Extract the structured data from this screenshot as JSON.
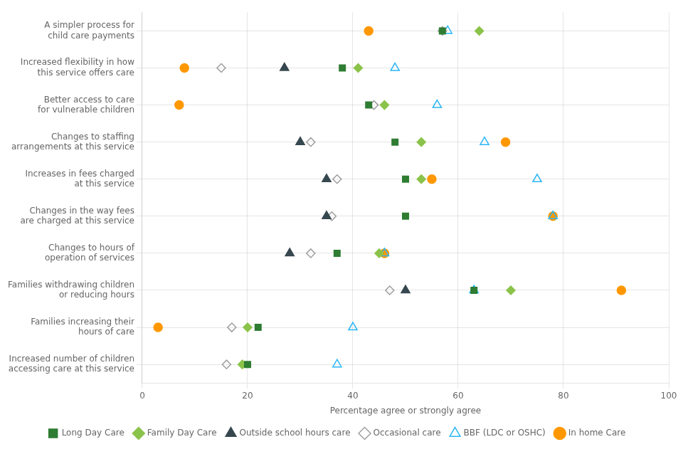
{
  "chart_data": {
    "type": "dot",
    "categories": [
      "A simpler process for\nchild care payments",
      "Increased flexibility in how\nthis service offers care",
      "Better access to care\nfor vulnerable children",
      "Changes to staffing\narrangements at this service",
      "Increases in fees charged\nat this service",
      "Changes in the way fees\nare charged at this service",
      "Changes to hours of\noperation of services",
      "Families withdrawing children\nor reducing hours",
      "Families increasing their\nhours of care",
      "Increased number of children\naccessing care at this service"
    ],
    "series": [
      {
        "name": "Long Day Care",
        "color": "#2e7d32",
        "marker": "square",
        "values": [
          57,
          38,
          43,
          48,
          50,
          50,
          37,
          63,
          22,
          20
        ]
      },
      {
        "name": "Family Day Care",
        "color": "#8bc34a",
        "marker": "diamond",
        "values": [
          64,
          41,
          46,
          53,
          53,
          null,
          45,
          70,
          20,
          19
        ]
      },
      {
        "name": "Outside school hours care",
        "color": "#37474f",
        "marker": "triangle",
        "values": [
          null,
          27,
          null,
          30,
          35,
          35,
          28,
          50,
          null,
          null
        ]
      },
      {
        "name": "Occasional care",
        "color": "#9e9e9e",
        "marker": "diamond-open",
        "values": [
          57,
          15,
          44,
          32,
          37,
          36,
          32,
          47,
          17,
          16
        ]
      },
      {
        "name": "BBF (LDC or OSHC)",
        "color": "#29b6f6",
        "marker": "triangle-open",
        "values": [
          58,
          48,
          56,
          65,
          75,
          78,
          46,
          63,
          40,
          37
        ]
      },
      {
        "name": "In home Care",
        "color": "#ff9800",
        "marker": "circle",
        "values": [
          43,
          8,
          7,
          69,
          55,
          78,
          46,
          91,
          3,
          null
        ]
      }
    ],
    "xlabel": "Percentage agree or strongly agree",
    "xlim": [
      0,
      100
    ],
    "xticks": [
      0,
      20,
      40,
      60,
      80,
      100
    ],
    "orientation": "horizontal",
    "grid": true,
    "legend": "bottom"
  }
}
